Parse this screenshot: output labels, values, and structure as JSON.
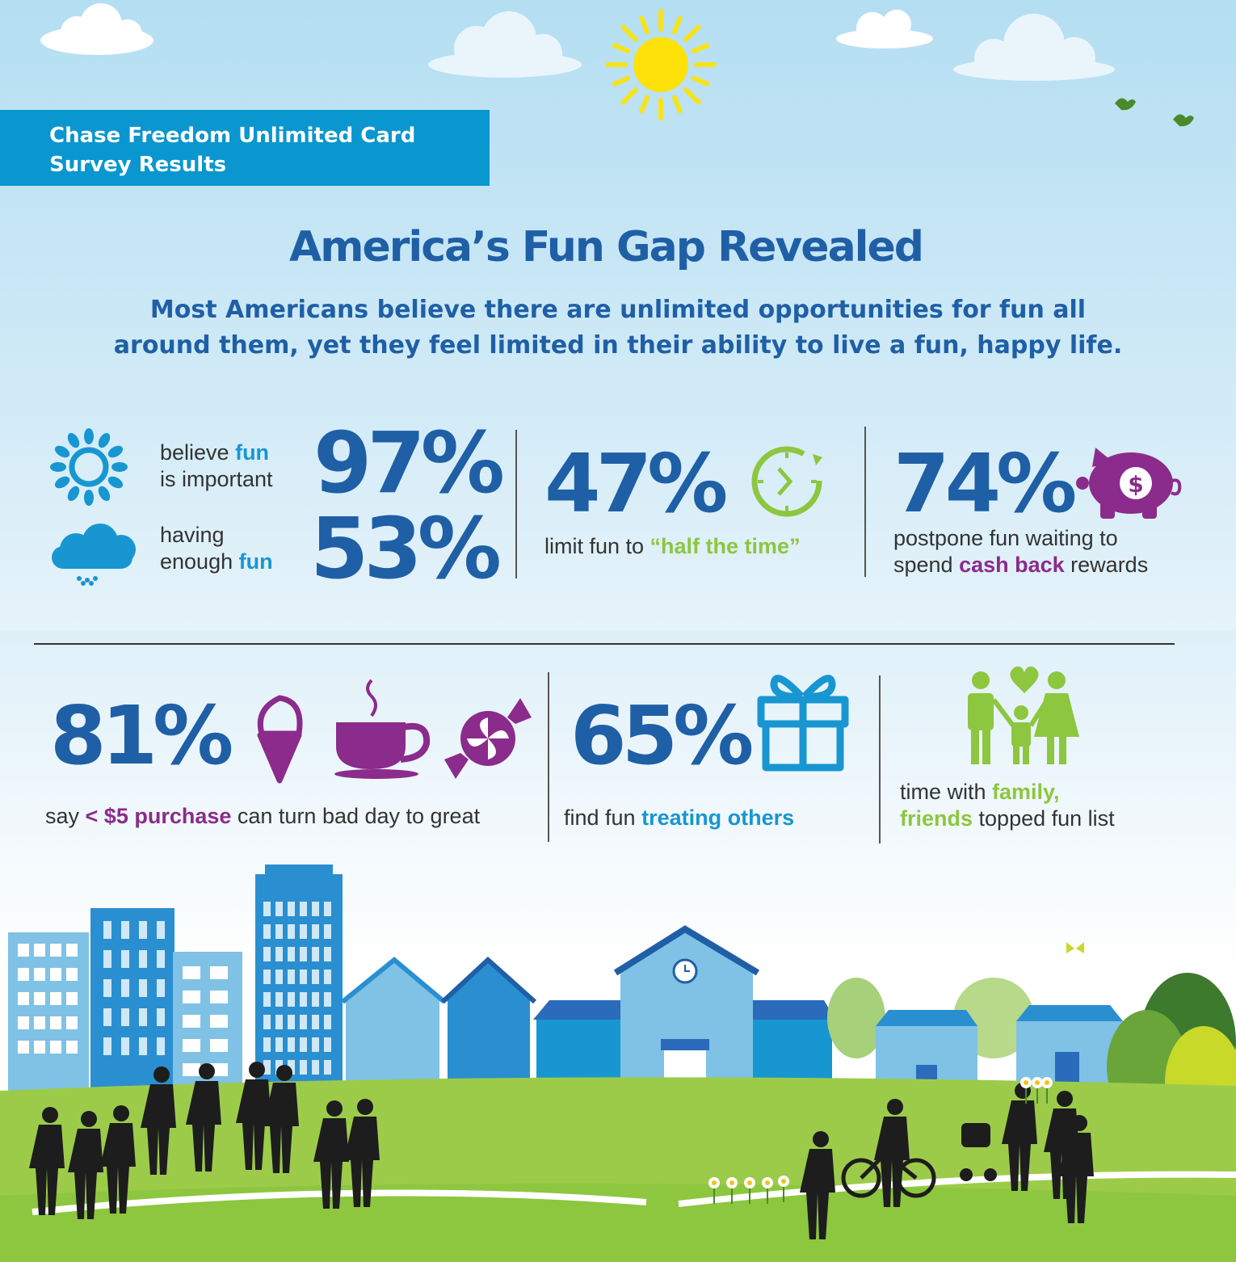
{
  "banner": {
    "line1": "Chase Freedom Unlimited Card",
    "line2": "Survey Results"
  },
  "header": {
    "title": "America’s Fun Gap Revealed",
    "subtitle_line1": "Most Americans believe there are unlimited opportunities for fun all",
    "subtitle_line2": "around them, yet they feel limited in their ability to live a fun, happy life."
  },
  "stats": {
    "important": {
      "value": "97%",
      "pre": "believe ",
      "hl": "fun",
      "post": "is important"
    },
    "enough": {
      "value": "53%",
      "pre": "having",
      "mid": "enough ",
      "hl": "fun"
    },
    "half_time": {
      "value": "47%",
      "pre": "limit fun to ",
      "hl": "“half the time”"
    },
    "cash_back": {
      "value": "74%",
      "line1": "postpone fun waiting  to",
      "pre": "spend ",
      "hl": "cash back",
      "post": " rewards"
    },
    "purchase": {
      "value": "81%",
      "pre": "say ",
      "hl": "< $5 purchase",
      "post": " can turn bad day to great"
    },
    "treating": {
      "value": "65%",
      "pre": "find fun ",
      "hl": "treating others"
    },
    "family": {
      "pre": "time with ",
      "hl1": "family,",
      "hl2": "friends",
      "post": " topped fun list"
    }
  },
  "icons": [
    "sun-icon",
    "rain-cloud-icon",
    "clock-icon",
    "piggy-bank-icon",
    "dollar-icon",
    "ice-cream-icon",
    "coffee-cup-icon",
    "candy-icon",
    "gift-icon",
    "family-icon",
    "bird-icon",
    "clock-tower-icon"
  ],
  "colors": {
    "navy": "#1f5fa6",
    "sky_blue": "#1896d1",
    "green": "#8dc63f",
    "purple": "#8b2b8b",
    "banner": "#0a96cf"
  }
}
